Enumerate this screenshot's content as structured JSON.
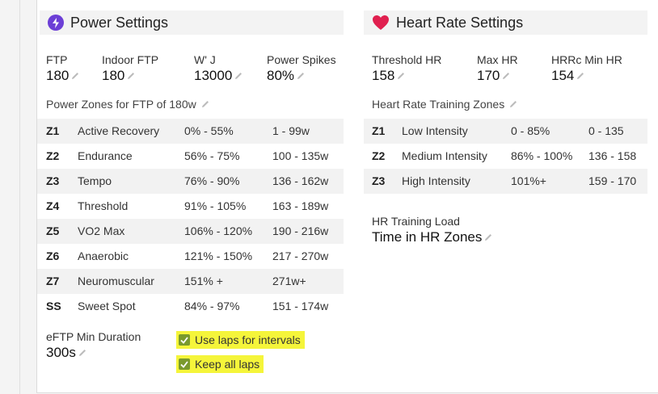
{
  "power": {
    "title": "Power Settings",
    "fields": [
      {
        "label": "FTP",
        "value": "180"
      },
      {
        "label": "Indoor FTP",
        "value": "180"
      },
      {
        "label": "W' J",
        "value": "13000"
      },
      {
        "label": "Power Spikes",
        "value": "80%"
      }
    ],
    "zones_title": "Power Zones for FTP of 180w",
    "zones": [
      {
        "code": "Z1",
        "name": "Active Recovery",
        "pct": "0% - 55%",
        "range": "1 - 99w"
      },
      {
        "code": "Z2",
        "name": "Endurance",
        "pct": "56% - 75%",
        "range": "100 - 135w"
      },
      {
        "code": "Z3",
        "name": "Tempo",
        "pct": "76% - 90%",
        "range": "136 - 162w"
      },
      {
        "code": "Z4",
        "name": "Threshold",
        "pct": "91% - 105%",
        "range": "163 - 189w"
      },
      {
        "code": "Z5",
        "name": "VO2 Max",
        "pct": "106% - 120%",
        "range": "190 - 216w"
      },
      {
        "code": "Z6",
        "name": "Anaerobic",
        "pct": "121% - 150%",
        "range": "217 - 270w"
      },
      {
        "code": "Z7",
        "name": "Neuromuscular",
        "pct": "151% +",
        "range": "271w+"
      },
      {
        "code": "SS",
        "name": "Sweet Spot",
        "pct": "84% - 97%",
        "range": "151 - 174w"
      }
    ],
    "eftp": {
      "label": "eFTP Min Duration",
      "value": "300s"
    },
    "checkboxes": [
      {
        "label": "Use laps for intervals",
        "checked": true
      },
      {
        "label": "Keep all laps",
        "checked": true
      }
    ]
  },
  "heart": {
    "title": "Heart Rate Settings",
    "fields": [
      {
        "label": "Threshold HR",
        "value": "158"
      },
      {
        "label": "Max HR",
        "value": "170"
      },
      {
        "label": "HRRc Min HR",
        "value": "154"
      }
    ],
    "zones_title": "Heart Rate Training Zones",
    "zones": [
      {
        "code": "Z1",
        "name": "Low Intensity",
        "pct": "0 - 85%",
        "range": "0 - 135"
      },
      {
        "code": "Z2",
        "name": "Medium Intensity",
        "pct": "86% - 100%",
        "range": "136 - 158"
      },
      {
        "code": "Z3",
        "name": "High Intensity",
        "pct": "101%+",
        "range": "159 - 170"
      }
    ],
    "load": {
      "label": "HR Training Load",
      "value": "Time in HR Zones"
    }
  },
  "colors": {
    "bolt": "#6c3fd6",
    "heart": "#e0204f",
    "highlight": "#f5f53a",
    "checkbox": "#7a9a2c"
  }
}
